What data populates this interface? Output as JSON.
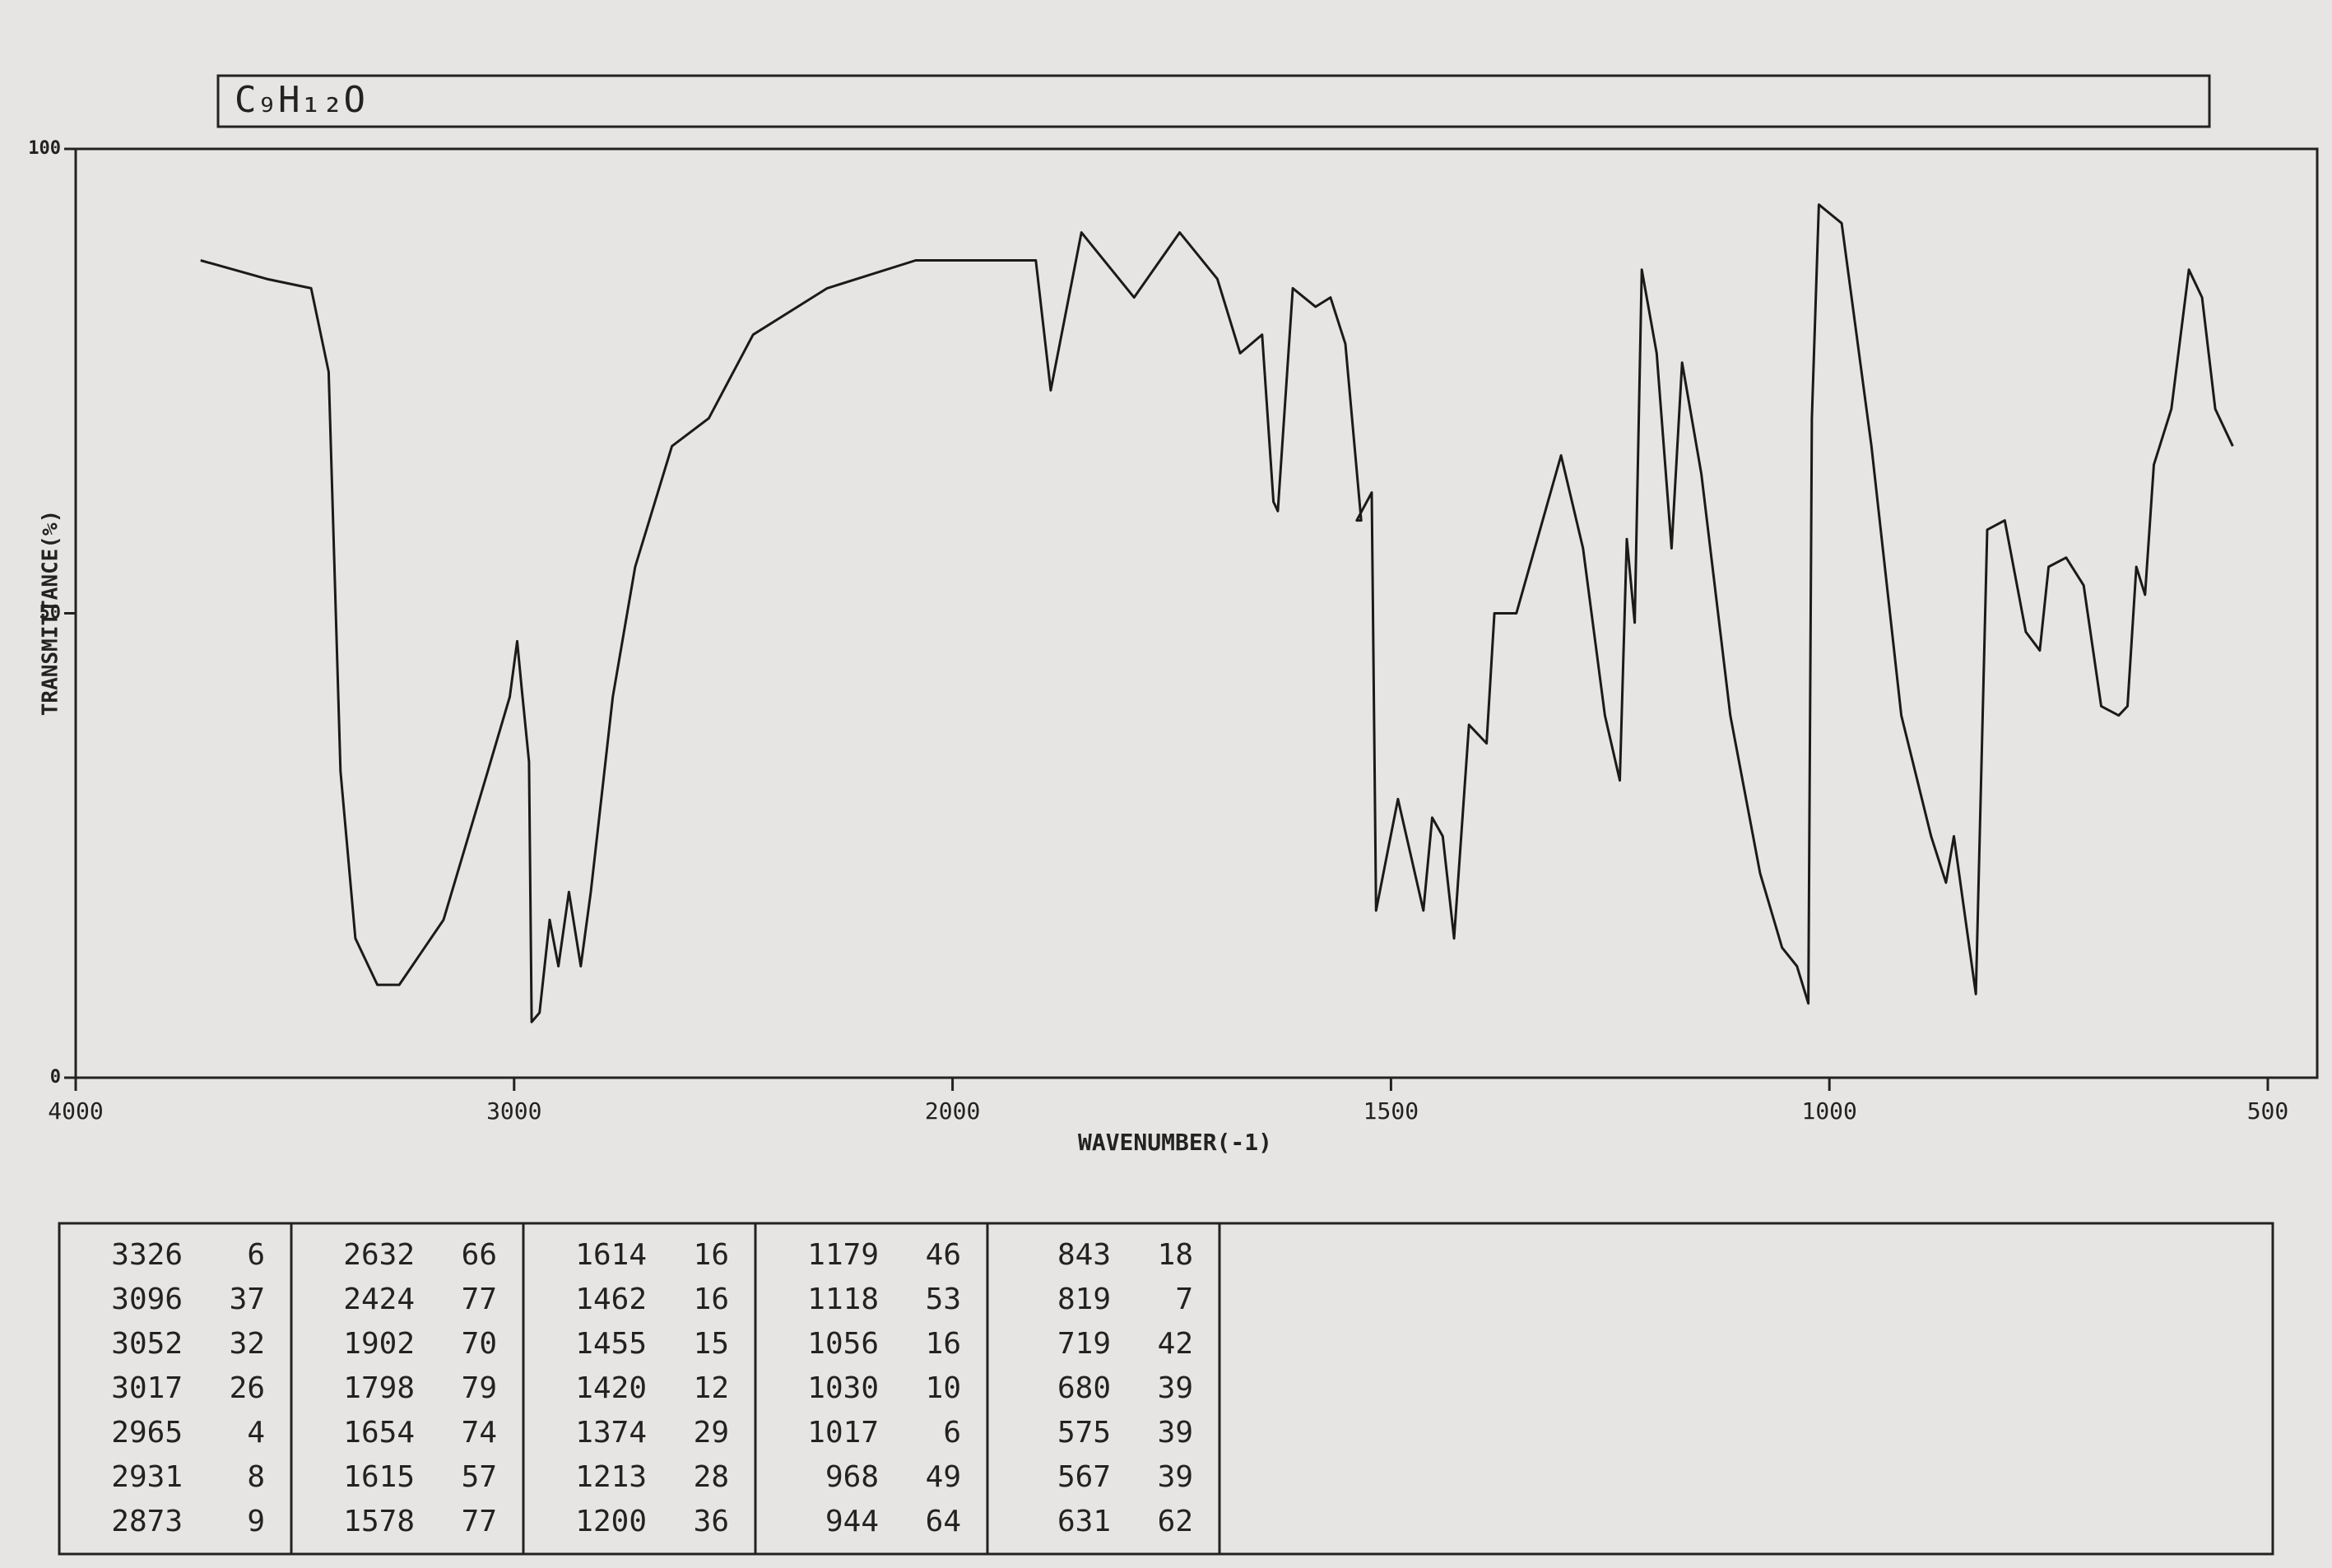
{
  "chart_data": {
    "type": "line",
    "title": "C₉H₁₂O",
    "x_label": "WAVENUMBER(-1)",
    "y_label": "TRANSMITTANCE(%)",
    "color": "#1a1a1a",
    "x": [
      3715,
      3564,
      3463,
      3423,
      3396,
      3362,
      3312,
      3262,
      3161,
      3060,
      3010,
      2993,
      2983,
      2966,
      2960,
      2942,
      2919,
      2899,
      2875,
      2848,
      2825,
      2775,
      2724,
      2640,
      2556,
      2455,
      2286,
      2084,
      1940,
      1905,
      1888,
      1853,
      1793,
      1741,
      1698,
      1672,
      1647,
      1634,
      1629,
      1612,
      1586,
      1569,
      1552,
      1534,
      1539,
      1522,
      1517,
      1492,
      1463,
      1453,
      1441,
      1428,
      1411,
      1391,
      1382,
      1357,
      1306,
      1281,
      1256,
      1239,
      1231,
      1222,
      1214,
      1197,
      1180,
      1168,
      1146,
      1113,
      1079,
      1054,
      1037,
      1024,
      1020,
      1012,
      986,
      952,
      918,
      884,
      867,
      858,
      833,
      820,
      800,
      776,
      760,
      750,
      730,
      710,
      690,
      670,
      660,
      650,
      640,
      630,
      610,
      590,
      575,
      560,
      540
    ],
    "values": [
      88,
      86,
      85,
      76,
      33,
      15,
      10,
      10,
      17,
      33,
      41,
      47,
      42,
      34,
      6,
      7,
      17,
      12,
      20,
      12,
      20,
      41,
      55,
      68,
      71,
      80,
      85,
      88,
      88,
      88,
      74,
      91,
      84,
      91,
      86,
      78,
      80,
      62,
      61,
      85,
      83,
      84,
      79,
      60,
      60,
      63,
      18,
      30,
      18,
      28,
      26,
      15,
      38,
      36,
      50,
      50,
      67,
      57,
      39,
      32,
      58,
      49,
      87,
      78,
      57,
      77,
      65,
      39,
      22,
      14,
      12,
      8,
      71,
      94,
      92,
      68,
      39,
      26,
      21,
      26,
      9,
      59,
      60,
      48,
      46,
      55,
      56,
      53,
      40,
      39,
      40,
      55,
      52,
      66,
      72,
      87,
      84,
      72,
      68
    ],
    "xlim": [
      4000,
      500
    ],
    "xticks": [
      4000,
      3000,
      2000,
      1500,
      1000,
      500
    ],
    "ylim": [
      0,
      100
    ],
    "yticks": [
      0,
      50,
      100
    ]
  },
  "peak_table": {
    "columns": [
      [
        [
          3326,
          6
        ],
        [
          3096,
          37
        ],
        [
          3052,
          32
        ],
        [
          3017,
          26
        ],
        [
          2965,
          4
        ],
        [
          2931,
          8
        ],
        [
          2873,
          9
        ]
      ],
      [
        [
          2632,
          66
        ],
        [
          2424,
          77
        ],
        [
          1902,
          70
        ],
        [
          1798,
          79
        ],
        [
          1654,
          74
        ],
        [
          1615,
          57
        ],
        [
          1578,
          77
        ]
      ],
      [
        [
          1614,
          16
        ],
        [
          1462,
          16
        ],
        [
          1455,
          15
        ],
        [
          1420,
          12
        ],
        [
          1374,
          29
        ],
        [
          1213,
          28
        ],
        [
          1200,
          36
        ]
      ],
      [
        [
          1179,
          46
        ],
        [
          1118,
          53
        ],
        [
          1056,
          16
        ],
        [
          1030,
          10
        ],
        [
          1017,
          6
        ],
        [
          968,
          49
        ],
        [
          944,
          64
        ]
      ],
      [
        [
          843,
          18
        ],
        [
          819,
          7
        ],
        [
          719,
          42
        ],
        [
          680,
          39
        ],
        [
          575,
          39
        ],
        [
          567,
          39
        ],
        [
          631,
          62
        ]
      ]
    ]
  }
}
